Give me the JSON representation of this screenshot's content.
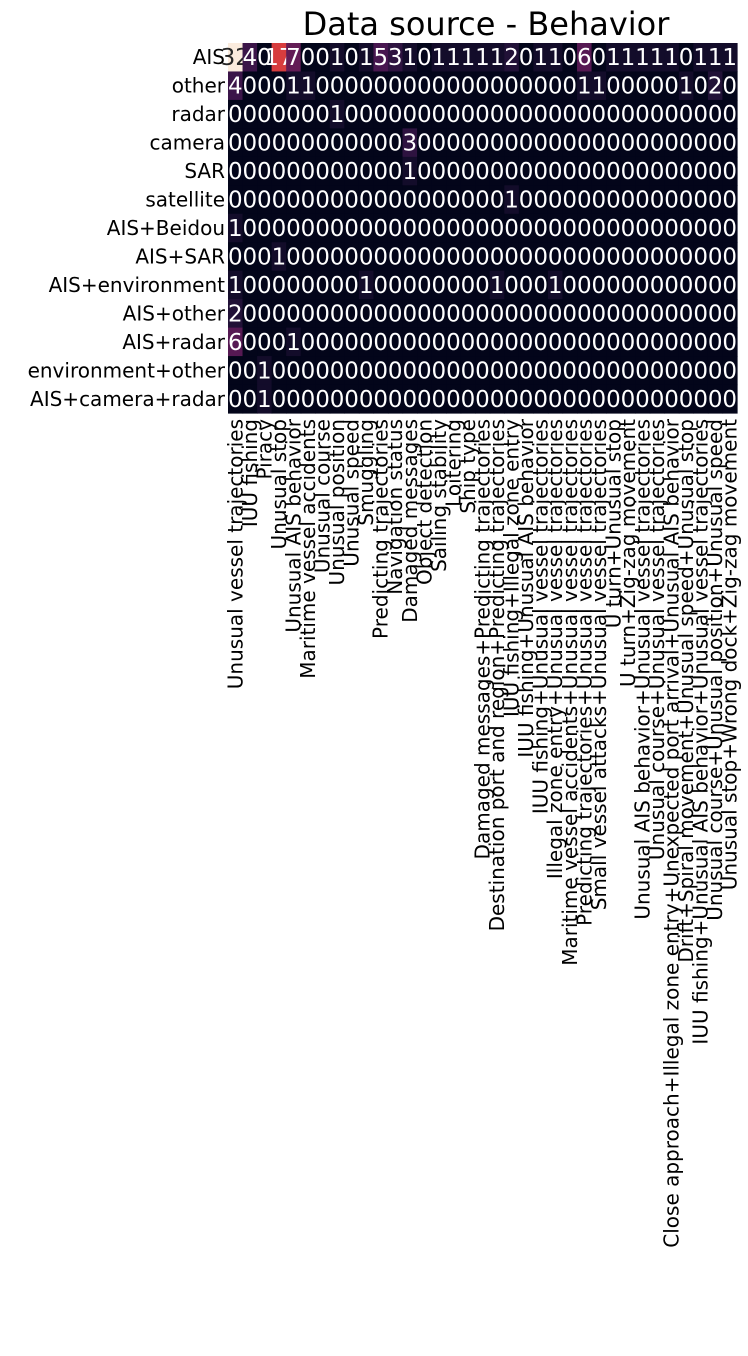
{
  "chart_data": {
    "type": "heatmap",
    "title": "Data source - Behavior",
    "xlabel": "",
    "ylabel": "",
    "rows": [
      "AIS",
      "other",
      "radar",
      "camera",
      "SAR",
      "satellite",
      "AIS+Beidou",
      "AIS+SAR",
      "AIS+environment",
      "AIS+other",
      "AIS+radar",
      "environment+other",
      "AIS+camera+radar"
    ],
    "columns": [
      "Unusual vessel trajectories",
      "IUU fishing",
      "Piracy",
      "Unusual stop",
      "Unusual AIS behavior",
      "Maritime vessel accidents",
      "Unusual course",
      "Unusual position",
      "Unusual speed",
      "Smuggling",
      "Predicting trajectories",
      "Navigation status",
      "Damaged messages",
      "Object detection",
      "Sailing stability",
      "Loitering",
      "Ship type",
      "Damaged messages+Predicting trajectories",
      "Destination port and region+Predicting trajectories",
      "IUU fishing+Illegal zone entry",
      "IUU fishing+Unusual AIS behavior",
      "IUU fishing+Unusual vessel trajectories",
      "Illegal zone entry+Unusual vessel trajectories",
      "Maritime vessel accidents+Unusual vessel trajectories",
      "Predicting trajectories+Unusual vessel trajectories",
      "Small vessel attacks+Unusual vessel trajectories",
      "U turn+Unusual stop",
      "U turn+Zig-zag movement",
      "Unusual AIS behavior+Unusual vessel trajectories",
      "Unusual course+Unusual vessel trajectories",
      "Close approach+Illegal zone entry+Unexpected port arrival+Unusual AIS behavior",
      "Drift+Spiral movement+Unusual speed+Unusual stop",
      "IUU fishing+Unusual AIS behavior+Unusual vessel trajectories",
      "Unusual course+Unusual position+Unusual speed",
      "Unusual stop+Wrong dock+Zig-zag movement"
    ],
    "values": [
      [
        32,
        4,
        0,
        17,
        7,
        0,
        0,
        1,
        0,
        1,
        5,
        3,
        1,
        0,
        1,
        1,
        1,
        1,
        1,
        2,
        0,
        1,
        1,
        0,
        6,
        0,
        1,
        1,
        1,
        1,
        1,
        0,
        1,
        1,
        1
      ],
      [
        4,
        0,
        0,
        0,
        1,
        1,
        0,
        0,
        0,
        0,
        0,
        0,
        0,
        0,
        0,
        0,
        0,
        0,
        0,
        0,
        0,
        0,
        0,
        0,
        1,
        1,
        0,
        0,
        0,
        0,
        0,
        1,
        0,
        2,
        0
      ],
      [
        0,
        0,
        0,
        0,
        0,
        0,
        0,
        1,
        0,
        0,
        0,
        0,
        0,
        0,
        0,
        0,
        0,
        0,
        0,
        0,
        0,
        0,
        0,
        0,
        0,
        0,
        0,
        0,
        0,
        0,
        0,
        0,
        0,
        0,
        0
      ],
      [
        0,
        0,
        0,
        0,
        0,
        0,
        0,
        0,
        0,
        0,
        0,
        0,
        3,
        0,
        0,
        0,
        0,
        0,
        0,
        0,
        0,
        0,
        0,
        0,
        0,
        0,
        0,
        0,
        0,
        0,
        0,
        0,
        0,
        0,
        0
      ],
      [
        0,
        0,
        0,
        0,
        0,
        0,
        0,
        0,
        0,
        0,
        0,
        0,
        1,
        0,
        0,
        0,
        0,
        0,
        0,
        0,
        0,
        0,
        0,
        0,
        0,
        0,
        0,
        0,
        0,
        0,
        0,
        0,
        0,
        0,
        0
      ],
      [
        0,
        0,
        0,
        0,
        0,
        0,
        0,
        0,
        0,
        0,
        0,
        0,
        0,
        0,
        0,
        0,
        0,
        0,
        0,
        1,
        0,
        0,
        0,
        0,
        0,
        0,
        0,
        0,
        0,
        0,
        0,
        0,
        0,
        0,
        0
      ],
      [
        1,
        0,
        0,
        0,
        0,
        0,
        0,
        0,
        0,
        0,
        0,
        0,
        0,
        0,
        0,
        0,
        0,
        0,
        0,
        0,
        0,
        0,
        0,
        0,
        0,
        0,
        0,
        0,
        0,
        0,
        0,
        0,
        0,
        0,
        0
      ],
      [
        0,
        0,
        0,
        1,
        0,
        0,
        0,
        0,
        0,
        0,
        0,
        0,
        0,
        0,
        0,
        0,
        0,
        0,
        0,
        0,
        0,
        0,
        0,
        0,
        0,
        0,
        0,
        0,
        0,
        0,
        0,
        0,
        0,
        0,
        0
      ],
      [
        1,
        0,
        0,
        0,
        0,
        0,
        0,
        0,
        0,
        1,
        0,
        0,
        0,
        0,
        0,
        0,
        0,
        0,
        1,
        0,
        0,
        0,
        1,
        0,
        0,
        0,
        0,
        0,
        0,
        0,
        0,
        0,
        0,
        0,
        0
      ],
      [
        2,
        0,
        0,
        0,
        0,
        0,
        0,
        0,
        0,
        0,
        0,
        0,
        0,
        0,
        0,
        0,
        0,
        0,
        0,
        0,
        0,
        0,
        0,
        0,
        0,
        0,
        0,
        0,
        0,
        0,
        0,
        0,
        0,
        0,
        0
      ],
      [
        6,
        0,
        0,
        0,
        1,
        0,
        0,
        0,
        0,
        0,
        0,
        0,
        0,
        0,
        0,
        0,
        0,
        0,
        0,
        0,
        0,
        0,
        0,
        0,
        0,
        0,
        0,
        0,
        0,
        0,
        0,
        0,
        0,
        0,
        0
      ],
      [
        0,
        0,
        1,
        0,
        0,
        0,
        0,
        0,
        0,
        0,
        0,
        0,
        0,
        0,
        0,
        0,
        0,
        0,
        0,
        0,
        0,
        0,
        0,
        0,
        0,
        0,
        0,
        0,
        0,
        0,
        0,
        0,
        0,
        0,
        0
      ],
      [
        0,
        0,
        1,
        0,
        0,
        0,
        0,
        0,
        0,
        0,
        0,
        0,
        0,
        0,
        0,
        0,
        0,
        0,
        0,
        0,
        0,
        0,
        0,
        0,
        0,
        0,
        0,
        0,
        0,
        0,
        0,
        0,
        0,
        0,
        0
      ]
    ],
    "vmin": 0,
    "vmax": 32,
    "colorscale": "rocket"
  }
}
